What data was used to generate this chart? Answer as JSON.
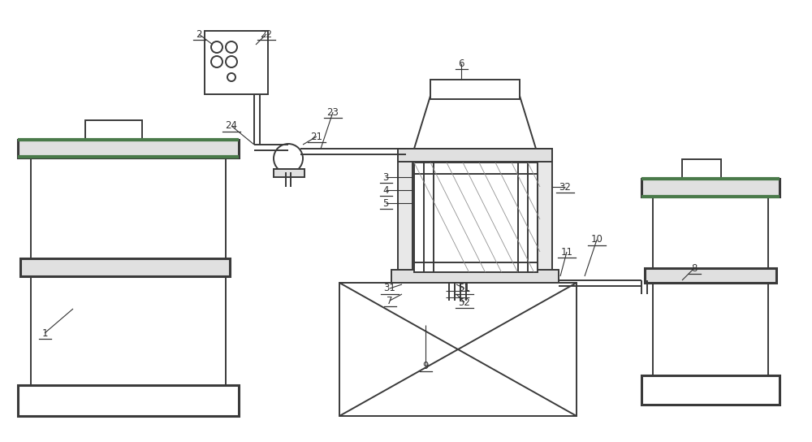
{
  "bg_color": "#ffffff",
  "lc": "#3a3a3a",
  "lw": 1.4,
  "tlw": 2.2,
  "green_color": "#4a7a4a",
  "fig_w": 10.0,
  "fig_h": 5.44,
  "label_fs": 8.5,
  "label_color": "#333333"
}
